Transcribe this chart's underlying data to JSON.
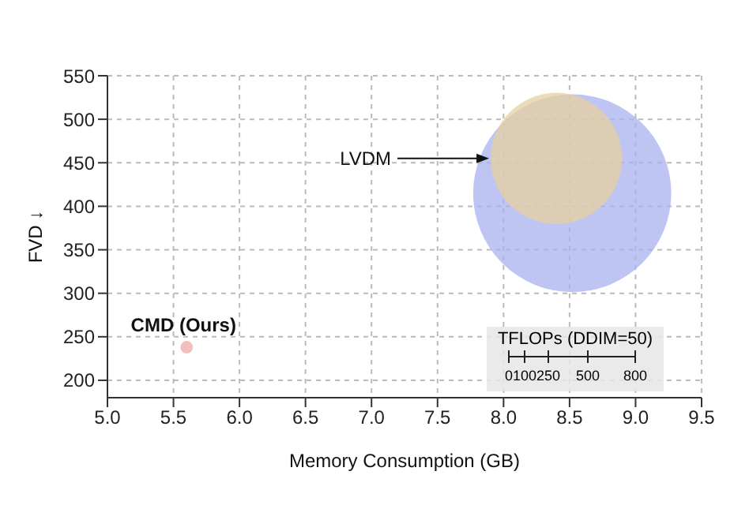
{
  "chart_data": {
    "type": "bubble",
    "xlabel": "Memory Consumption (GB)",
    "ylabel": "FVD ↓",
    "legend_title": "TFLOPs (DDIM=50)",
    "annotations": [
      "0",
      "100",
      "250",
      "500",
      "800"
    ],
    "grid": true,
    "xlim": [
      5,
      9.5
    ],
    "xticks": [
      {
        "value": 5,
        "label": "5.0"
      },
      {
        "value": 5.5,
        "label": "5.5"
      },
      {
        "value": 6,
        "label": "6.0"
      },
      {
        "value": 6.5,
        "label": "6.5"
      },
      {
        "value": 7,
        "label": "7.0"
      },
      {
        "value": 7.5,
        "label": "7.5"
      },
      {
        "value": 8,
        "label": "8.0"
      },
      {
        "value": 8.5,
        "label": "8.5"
      },
      {
        "value": 9,
        "label": "9.0"
      },
      {
        "value": 9.5,
        "label": "9.5"
      }
    ],
    "ylim": [
      180,
      550
    ],
    "yticks": [
      200,
      250,
      300,
      350,
      400,
      450,
      500,
      550
    ],
    "series": [
      {
        "color": "#aab2ee",
        "x": [
          8.52
        ],
        "values": [
          415
        ],
        "sizes": [
          1
        ]
      },
      {
        "name": "LVDM",
        "color": "#e6cf9f",
        "x": [
          8.4
        ],
        "values": [
          455
        ],
        "sizes": [
          0.44
        ]
      },
      {
        "name": "CMD (Ours)",
        "color": "#eeaaaa",
        "x": [
          5.6
        ],
        "values": [
          238
        ],
        "sizes": [
          0.004
        ]
      }
    ]
  }
}
